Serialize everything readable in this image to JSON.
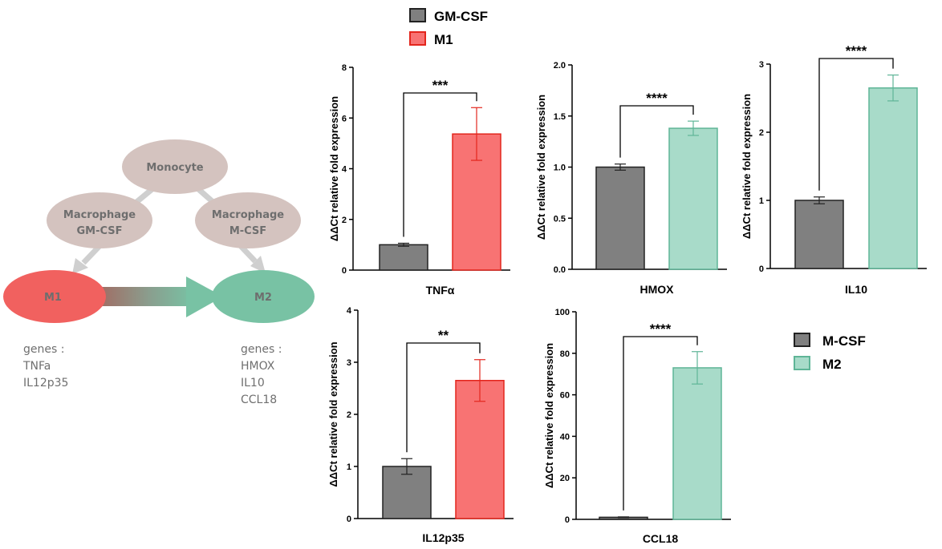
{
  "diagram": {
    "monocyte": "Monocyte",
    "mac_gm": [
      "Macrophage",
      "GM-CSF"
    ],
    "mac_m": [
      "Macrophage",
      "M-CSF"
    ],
    "m1": "M1",
    "m2": "M2",
    "m1_genes": [
      "genes :",
      "TNFa",
      "IL12p35"
    ],
    "m2_genes": [
      "genes :",
      "HMOX",
      "IL10",
      "CCL18"
    ],
    "colors": {
      "m1": "#f1615f",
      "m2": "#78c2a4",
      "macrophage": "#d4c3bf",
      "arrow": "#cfcfcf"
    }
  },
  "legends": [
    {
      "items": [
        {
          "label": "GM-CSF",
          "fill": "#808080",
          "stroke": "#222222"
        },
        {
          "label": "M1",
          "fill": "#f87373",
          "stroke": "#e3261d"
        }
      ]
    },
    {
      "items": [
        {
          "label": "M-CSF",
          "fill": "#808080",
          "stroke": "#222222"
        },
        {
          "label": "M2",
          "fill": "#a8dbc9",
          "stroke": "#5fb597"
        }
      ]
    }
  ],
  "chart_data": [
    {
      "type": "bar",
      "title": "",
      "xlabel": "TNFα",
      "ylabel": "ΔΔCt relative fold expression",
      "ylim": [
        0,
        8
      ],
      "ticks": [
        "0",
        "2",
        "4",
        "6",
        "8"
      ],
      "categories": [
        "GM-CSF",
        "M1"
      ],
      "values": [
        1.0,
        5.37
      ],
      "errors": [
        0.06,
        1.04
      ],
      "significance": "***",
      "colors": [
        [
          "#808080",
          "#222222"
        ],
        [
          "#f87373",
          "#e3261d"
        ]
      ]
    },
    {
      "type": "bar",
      "title": "",
      "xlabel": "HMOX",
      "ylabel": "ΔΔCt relative fold expression",
      "ylim": [
        0,
        2
      ],
      "ticks": [
        "0.0",
        "0.5",
        "1.0",
        "1.5",
        "2.0"
      ],
      "categories": [
        "M-CSF",
        "M2"
      ],
      "values": [
        1.0,
        1.38
      ],
      "errors": [
        0.03,
        0.07
      ],
      "significance": "****",
      "colors": [
        [
          "#808080",
          "#222222"
        ],
        [
          "#a8dbc9",
          "#5fb597"
        ]
      ]
    },
    {
      "type": "bar",
      "title": "",
      "xlabel": "IL10",
      "ylabel": "ΔΔCt relative fold expression",
      "ylim": [
        0,
        3
      ],
      "ticks": [
        "0",
        "1",
        "2",
        "3"
      ],
      "categories": [
        "M-CSF",
        "M2"
      ],
      "values": [
        1.0,
        2.65
      ],
      "errors": [
        0.05,
        0.19
      ],
      "significance": "****",
      "colors": [
        [
          "#808080",
          "#222222"
        ],
        [
          "#a8dbc9",
          "#5fb597"
        ]
      ]
    },
    {
      "type": "bar",
      "title": "",
      "xlabel": "IL12p35",
      "ylabel": "ΔΔCt relative fold expression",
      "ylim": [
        0,
        4
      ],
      "ticks": [
        "0",
        "1",
        "2",
        "3",
        "4"
      ],
      "categories": [
        "GM-CSF",
        "M1"
      ],
      "values": [
        1.0,
        2.65
      ],
      "errors": [
        0.15,
        0.4
      ],
      "significance": "**",
      "colors": [
        [
          "#808080",
          "#222222"
        ],
        [
          "#f87373",
          "#e3261d"
        ]
      ]
    },
    {
      "type": "bar",
      "title": "",
      "xlabel": "CCL18",
      "ylabel": "ΔΔCt relative fold expression",
      "ylim": [
        0,
        100
      ],
      "ticks": [
        "0",
        "20",
        "40",
        "60",
        "80",
        "100"
      ],
      "categories": [
        "M-CSF",
        "M2"
      ],
      "values": [
        1.0,
        73.0
      ],
      "errors": [
        0.2,
        7.8
      ],
      "significance": "****",
      "colors": [
        [
          "#808080",
          "#222222"
        ],
        [
          "#a8dbc9",
          "#5fb597"
        ]
      ]
    }
  ]
}
